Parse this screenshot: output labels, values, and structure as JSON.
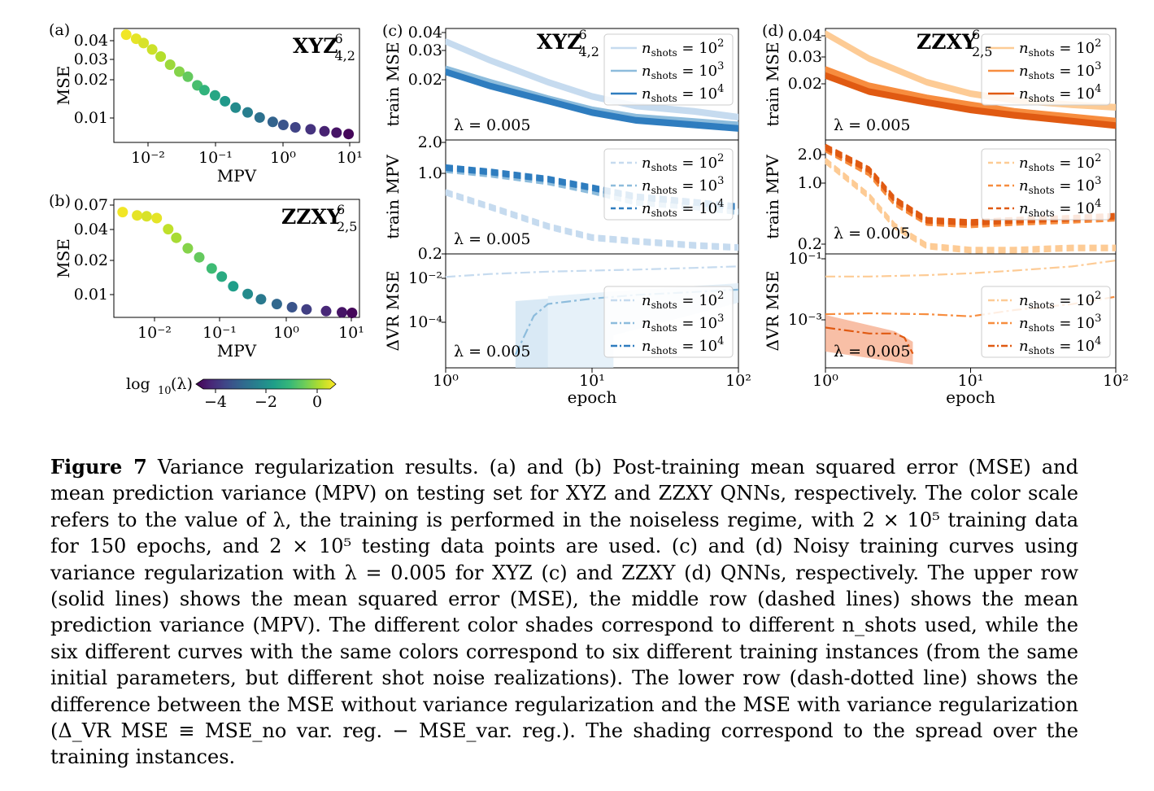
{
  "figure": {
    "colorbar": {
      "label_main": "log",
      "label_sub": "10",
      "label_arg": "(λ)",
      "ticks": [
        "−4",
        "−2",
        "0"
      ]
    },
    "lambda_label": "λ = 0.005",
    "legend_n": "n",
    "legend_sub": "shots",
    "legend_eq": " = 10",
    "legend_exps": [
      "2",
      "3",
      "4"
    ]
  },
  "caption": {
    "label": "Figure 7",
    "text": "Variance regularization results. (a) and (b) Post-training mean squared error (MSE) and mean prediction variance (MPV) on testing set for XYZ and ZZXY QNNs, respectively. The color scale refers to the value of λ, the training is performed in the noiseless regime, with 2 × 10⁵ training data for 150 epochs, and 2 × 10⁵ testing data points are used. (c) and (d) Noisy training curves using variance regularization with λ = 0.005 for XYZ (c) and ZZXY (d) QNNs, respectively. The upper row (solid lines) shows the mean squared error (MSE), the middle row (dashed lines) shows the mean prediction variance (MPV). The different color shades correspond to different n_shots used, while the six different curves with the same colors correspond to six different training instances (from the same initial parameters, but different shot noise realizations). The lower row (dash-dotted line) shows the difference between the MSE without variance regularization and the MSE with variance regularization (Δ_VR MSE ≡ MSE_no var. reg. − MSE_var. reg.). The shading correspond to the spread over the training instances."
  },
  "chart_data": [
    {
      "panel": "(a)",
      "type": "scatter",
      "title": "XYZ",
      "title_sup": "6",
      "title_sub": "4,2",
      "xlabel": "MPV",
      "ylabel": "MSE",
      "xscale": "log",
      "yscale": "log",
      "xticks": [
        "10⁻²",
        "10⁻¹",
        "10⁰",
        "10¹"
      ],
      "yticks": [
        "0.04",
        "0.03",
        "0.02",
        "0.01"
      ],
      "xlim": [
        0.0033,
        13
      ],
      "ylim": [
        0.0072,
        0.05
      ],
      "color_scale": "log10(λ)",
      "points": [
        [
          0.005,
          0.045,
          0.3
        ],
        [
          0.007,
          0.042,
          0.2
        ],
        [
          0.009,
          0.039,
          0.1
        ],
        [
          0.012,
          0.035,
          0.0
        ],
        [
          0.016,
          0.031,
          -0.2
        ],
        [
          0.022,
          0.027,
          -0.4
        ],
        [
          0.03,
          0.024,
          -0.6
        ],
        [
          0.04,
          0.022,
          -0.9
        ],
        [
          0.055,
          0.019,
          -1.2
        ],
        [
          0.07,
          0.0175,
          -1.5
        ],
        [
          0.1,
          0.016,
          -1.8
        ],
        [
          0.14,
          0.0145,
          -2.1
        ],
        [
          0.2,
          0.013,
          -2.4
        ],
        [
          0.3,
          0.012,
          -2.7
        ],
        [
          0.45,
          0.011,
          -3.0
        ],
        [
          0.7,
          0.0102,
          -3.3
        ],
        [
          1.0,
          0.0097,
          -3.6
        ],
        [
          1.5,
          0.0093,
          -3.9
        ],
        [
          2.5,
          0.009,
          -4.2
        ],
        [
          4,
          0.0087,
          -4.5
        ],
        [
          6,
          0.0085,
          -4.7
        ],
        [
          9,
          0.0083,
          -4.9
        ]
      ]
    },
    {
      "panel": "(b)",
      "type": "scatter",
      "title": "ZZXY",
      "title_sup": "6",
      "title_sub": "2,5",
      "xlabel": "MPV",
      "ylabel": "MSE",
      "xscale": "log",
      "yscale": "log",
      "xticks": [
        "10⁻²",
        "10⁻¹",
        "10⁰",
        "10¹"
      ],
      "yticks": [
        "0.07",
        "0.04",
        "0.02",
        "0.01"
      ],
      "xlim": [
        0.0022,
        13
      ],
      "ylim": [
        0.0075,
        0.08
      ],
      "color_scale": "log10(λ)",
      "points": [
        [
          0.003,
          0.062,
          0.3
        ],
        [
          0.005,
          0.058,
          0.2
        ],
        [
          0.007,
          0.057,
          0.1
        ],
        [
          0.01,
          0.055,
          0.2
        ],
        [
          0.015,
          0.044,
          -0.1
        ],
        [
          0.02,
          0.037,
          -0.3
        ],
        [
          0.03,
          0.03,
          -0.6
        ],
        [
          0.045,
          0.025,
          -0.9
        ],
        [
          0.07,
          0.02,
          -1.3
        ],
        [
          0.1,
          0.017,
          -1.7
        ],
        [
          0.15,
          0.014,
          -2.0
        ],
        [
          0.25,
          0.012,
          -2.4
        ],
        [
          0.4,
          0.0108,
          -2.8
        ],
        [
          0.7,
          0.0098,
          -3.2
        ],
        [
          1.2,
          0.0092,
          -3.6
        ],
        [
          2,
          0.0088,
          -4.0
        ],
        [
          4,
          0.0085,
          -4.4
        ],
        [
          7,
          0.0083,
          -4.7
        ],
        [
          10,
          0.0082,
          -4.9
        ]
      ]
    },
    {
      "panel": "(c)",
      "type": "line",
      "title": "XYZ",
      "title_sup": "6",
      "title_sub": "4,2",
      "xlabel": "epoch",
      "xscale": "log",
      "xlim": [
        1,
        100
      ],
      "xticks": [
        "10⁰",
        "10¹",
        "10²"
      ],
      "rows": [
        {
          "ylabel": "train MSE",
          "yticks": [
            "0.04",
            "0.03",
            "0.02",
            "2.0"
          ],
          "ylim": [
            0.0085,
            0.04
          ],
          "series": [
            {
              "name": "n_shots = 10^2",
              "x": [
                1,
                2,
                5,
                10,
                20,
                50,
                100
              ],
              "y": [
                0.034,
                0.026,
                0.019,
                0.0155,
                0.0135,
                0.0125,
                0.0115
              ]
            },
            {
              "name": "n_shots = 10^3",
              "x": [
                1,
                2,
                5,
                10,
                20,
                50,
                100
              ],
              "y": [
                0.023,
                0.019,
                0.015,
                0.0128,
                0.0115,
                0.0108,
                0.0103
              ]
            },
            {
              "name": "n_shots = 10^4",
              "x": [
                1,
                2,
                5,
                10,
                20,
                50,
                100
              ],
              "y": [
                0.022,
                0.018,
                0.0145,
                0.0123,
                0.011,
                0.0103,
                0.0098
              ]
            }
          ]
        },
        {
          "ylabel": "train MPV",
          "yticks": [
            "1.0",
            "0.2"
          ],
          "ylim": [
            0.19,
            2.0
          ],
          "series": [
            {
              "name": "n_shots = 10^2",
              "x": [
                1,
                2,
                5,
                10,
                20,
                50,
                100
              ],
              "y": [
                0.68,
                0.5,
                0.33,
                0.26,
                0.24,
                0.22,
                0.21
              ]
            },
            {
              "name": "n_shots = 10^3",
              "x": [
                1,
                2,
                5,
                10,
                20,
                50,
                100
              ],
              "y": [
                1.1,
                1.0,
                0.85,
                0.7,
                0.55,
                0.5,
                0.45
              ]
            },
            {
              "name": "n_shots = 10^4",
              "x": [
                1,
                2,
                5,
                10,
                20,
                50,
                100
              ],
              "y": [
                1.15,
                1.05,
                0.9,
                0.75,
                0.62,
                0.55,
                0.5
              ]
            }
          ]
        },
        {
          "ylabel": "ΔVR MSE",
          "yticks": [
            "10⁻²",
            "10⁻⁴"
          ],
          "ylim": [
            1e-05,
            0.05
          ],
          "series": [
            {
              "name": "n_shots = 10^2",
              "x": [
                1,
                2,
                5,
                10,
                20,
                50,
                100
              ],
              "y": [
                0.008,
                0.01,
                0.012,
                0.013,
                0.014,
                0.016,
                0.018
              ]
            },
            {
              "name": "n_shots = 10^3",
              "x": [
                3,
                4,
                5,
                10,
                20,
                50,
                100
              ],
              "y": [
                2e-05,
                0.0004,
                0.001,
                0.0015,
                0.002,
                0.0025,
                0.003
              ]
            }
          ]
        }
      ]
    },
    {
      "panel": "(d)",
      "type": "line",
      "title": "ZZXY",
      "title_sup": "6",
      "title_sub": "2,5",
      "xlabel": "epoch",
      "xscale": "log",
      "xlim": [
        1,
        100
      ],
      "xticks": [
        "10⁰",
        "10¹",
        "10²"
      ],
      "rows": [
        {
          "ylabel": "train MSE",
          "yticks": [
            "0.04",
            "0.03",
            "0.02"
          ],
          "ylim": [
            0.009,
            0.042
          ],
          "series": [
            {
              "name": "n_shots = 10^2",
              "x": [
                1,
                2,
                5,
                10,
                20,
                50,
                100
              ],
              "y": [
                0.04,
                0.028,
                0.02,
                0.017,
                0.0155,
                0.0145,
                0.014
              ]
            },
            {
              "name": "n_shots = 10^3",
              "x": [
                1,
                2,
                5,
                10,
                20,
                50,
                100
              ],
              "y": [
                0.024,
                0.019,
                0.016,
                0.0145,
                0.0132,
                0.0122,
                0.0115
              ]
            },
            {
              "name": "n_shots = 10^4",
              "x": [
                1,
                2,
                5,
                10,
                20,
                50,
                100
              ],
              "y": [
                0.022,
                0.0175,
                0.015,
                0.0135,
                0.0125,
                0.0115,
                0.0108
              ]
            }
          ]
        },
        {
          "ylabel": "train MPV",
          "yticks": [
            "2.0",
            "1.0",
            "0.2"
          ],
          "ylim": [
            0.19,
            2.5
          ],
          "series": [
            {
              "name": "n_shots = 10^2",
              "x": [
                1,
                2,
                3,
                5,
                10,
                20,
                50,
                100
              ],
              "y": [
                1.6,
                0.7,
                0.35,
                0.22,
                0.2,
                0.2,
                0.21,
                0.21
              ]
            },
            {
              "name": "n_shots = 10^3",
              "x": [
                1,
                2,
                3,
                5,
                10,
                20,
                50,
                100
              ],
              "y": [
                2.1,
                1.2,
                0.6,
                0.38,
                0.36,
                0.38,
                0.4,
                0.42
              ]
            },
            {
              "name": "n_shots = 10^4",
              "x": [
                1,
                2,
                3,
                5,
                10,
                20,
                50,
                100
              ],
              "y": [
                2.2,
                1.3,
                0.65,
                0.4,
                0.38,
                0.4,
                0.42,
                0.44
              ]
            }
          ]
        },
        {
          "ylabel": "ΔVR MSE",
          "yticks": [
            "10⁻¹",
            "10⁻³"
          ],
          "ylim": [
            5e-05,
            0.1
          ],
          "series": [
            {
              "name": "n_shots = 10^2",
              "x": [
                1,
                2,
                5,
                10,
                20,
                50,
                100
              ],
              "y": [
                0.02,
                0.02,
                0.022,
                0.025,
                0.03,
                0.04,
                0.06
              ]
            },
            {
              "name": "n_shots = 10^3",
              "x": [
                1,
                2,
                5,
                10,
                20,
                50,
                100
              ],
              "y": [
                0.0015,
                0.0016,
                0.0015,
                0.0013,
                0.002,
                0.003,
                0.005
              ]
            },
            {
              "name": "n_shots = 10^4",
              "x": [
                1,
                2,
                3,
                3.5,
                4
              ],
              "y": [
                0.0006,
                0.0004,
                0.0004,
                0.0003,
                0.0001
              ]
            }
          ]
        }
      ]
    }
  ]
}
